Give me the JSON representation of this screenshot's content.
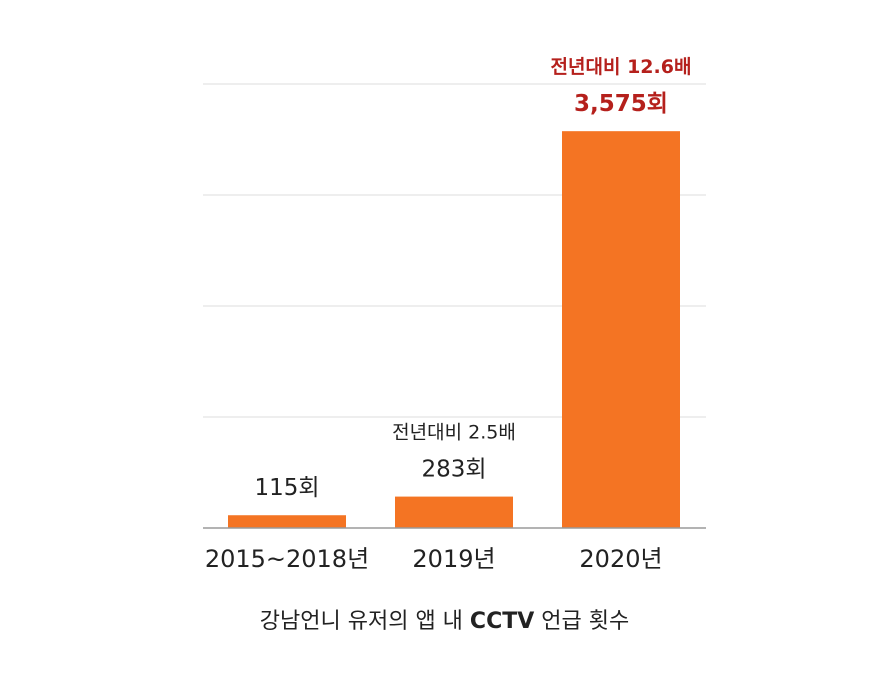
{
  "chart_data": {
    "type": "bar",
    "categories": [
      "2015~2018년",
      "2019년",
      "2020년"
    ],
    "values": [
      115,
      283,
      3575
    ],
    "value_labels": [
      "115회",
      "283회",
      "3,575회"
    ],
    "annotations": [
      "",
      "전년대비 2.5배",
      "전년대비 12.6배"
    ],
    "highlight_index": 2,
    "ylim": [
      0,
      4000
    ],
    "grid": true,
    "bar_color": "#f47423",
    "highlight_text_color": "#b5201c"
  },
  "caption": {
    "before": "강남언니 유저의 앱 내 ",
    "bold": "CCTV",
    "after": " 언급 횟수"
  }
}
